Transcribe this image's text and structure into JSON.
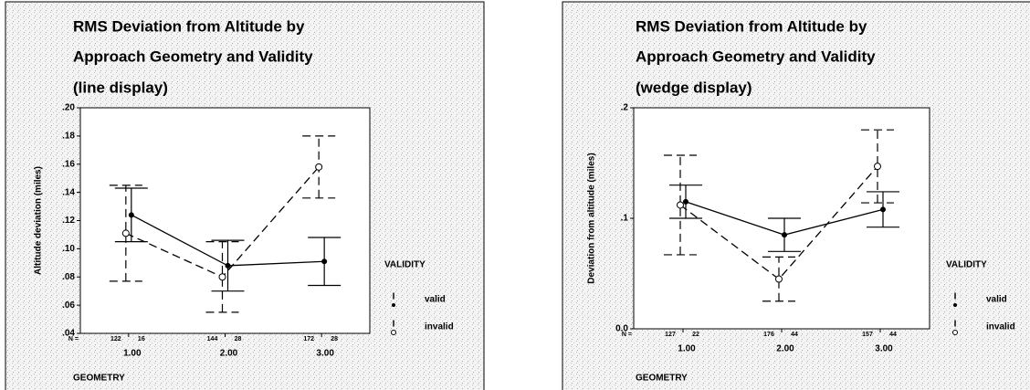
{
  "chart_data": [
    {
      "type": "errorbar-line",
      "title": [
        "RMS Deviation from Altitude by",
        "Approach Geometry and Validity"
      ],
      "subtitle": "(line display)",
      "ylabel": "Altitude deviation (miles)",
      "xlabel": "GEOMETRY",
      "legend_title": "VALIDITY",
      "n_label": "N =",
      "categories": [
        "1.00",
        "2.00",
        "3.00"
      ],
      "ylim": [
        0.04,
        0.2
      ],
      "yticks": [
        {
          "value": 0.04,
          "label": ".04"
        },
        {
          "value": 0.06,
          "label": ".06"
        },
        {
          "value": 0.08,
          "label": ".08"
        },
        {
          "value": 0.1,
          "label": ".10"
        },
        {
          "value": 0.12,
          "label": ".12"
        },
        {
          "value": 0.14,
          "label": ".14"
        },
        {
          "value": 0.16,
          "label": ".16"
        },
        {
          "value": 0.18,
          "label": ".18"
        },
        {
          "value": 0.2,
          "label": ".20"
        }
      ],
      "series": [
        {
          "name": "valid",
          "color": "#000000",
          "dashed": false,
          "marker": "dot",
          "values": [
            0.124,
            0.088,
            0.091
          ],
          "errors": [
            0.019,
            0.018,
            0.017
          ],
          "n": [
            122,
            144,
            172
          ]
        },
        {
          "name": "invalid",
          "color": "#000000",
          "dashed": true,
          "marker": "circle",
          "values": [
            0.111,
            0.08,
            0.158
          ],
          "errors": [
            0.034,
            0.025,
            0.022
          ],
          "n": [
            16,
            28,
            28
          ]
        }
      ]
    },
    {
      "type": "errorbar-line",
      "title": [
        "RMS Deviation from Altitude by",
        "Approach Geometry and Validity"
      ],
      "subtitle": "(wedge display)",
      "ylabel": "Deviation from altitude (miles)",
      "xlabel": "GEOMETRY",
      "legend_title": "VALIDITY",
      "n_label": "N =",
      "categories": [
        "1.00",
        "2.00",
        "3.00"
      ],
      "ylim": [
        0,
        0.2
      ],
      "yticks": [
        {
          "value": 0,
          "label": "0.0"
        },
        {
          "value": 0.1,
          "label": ".1"
        },
        {
          "value": 0.2,
          "label": ".2"
        }
      ],
      "series": [
        {
          "name": "valid",
          "color": "#000000",
          "dashed": false,
          "marker": "dot",
          "values": [
            0.115,
            0.085,
            0.108
          ],
          "errors": [
            0.015,
            0.015,
            0.016
          ],
          "n": [
            127,
            176,
            157
          ]
        },
        {
          "name": "invalid",
          "color": "#000000",
          "dashed": true,
          "marker": "circle",
          "values": [
            0.112,
            0.045,
            0.147
          ],
          "errors": [
            0.045,
            0.02,
            0.033
          ],
          "n": [
            22,
            44,
            44
          ]
        }
      ]
    }
  ]
}
